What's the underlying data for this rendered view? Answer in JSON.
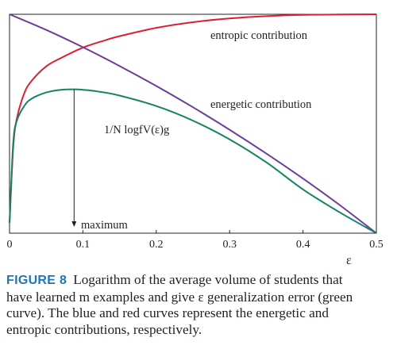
{
  "chart_data": {
    "type": "line",
    "xlabel": "ε",
    "ylabel": "",
    "xlim": [
      0,
      0.5
    ],
    "xticks": [
      "0",
      "0.1",
      "0.2",
      "0.3",
      "0.4",
      "0.5"
    ],
    "grid": false,
    "series": [
      {
        "name": "entropic contribution",
        "color": "#d92231",
        "x": [
          0,
          0.005,
          0.01,
          0.02,
          0.03,
          0.05,
          0.07,
          0.1,
          0.13,
          0.15,
          0.2,
          0.25,
          0.3,
          0.35,
          0.4,
          0.45,
          0.5
        ],
        "y": [
          0,
          0.36,
          0.5,
          0.62,
          0.68,
          0.75,
          0.79,
          0.84,
          0.875,
          0.895,
          0.935,
          0.962,
          0.98,
          0.991,
          0.997,
          0.999,
          1.0
        ]
      },
      {
        "name": "energetic contribution",
        "color": "#6a3e9a",
        "x": [
          0,
          0.05,
          0.1,
          0.15,
          0.2,
          0.25,
          0.3,
          0.35,
          0.4,
          0.45,
          0.5
        ],
        "y": [
          1.0,
          0.925,
          0.842,
          0.752,
          0.656,
          0.554,
          0.446,
          0.332,
          0.212,
          0.085,
          -0.05
        ]
      },
      {
        "name": "1/N logfV(ε)g",
        "color": "#128466",
        "x": [
          0,
          0.005,
          0.01,
          0.02,
          0.03,
          0.05,
          0.07,
          0.09,
          0.1,
          0.12,
          0.15,
          0.2,
          0.25,
          0.3,
          0.35,
          0.4,
          0.45,
          0.5
        ],
        "y": [
          0,
          0.38,
          0.49,
          0.56,
          0.595,
          0.625,
          0.638,
          0.64,
          0.638,
          0.63,
          0.61,
          0.56,
          0.49,
          0.4,
          0.29,
          0.16,
          0.05,
          -0.05
        ]
      }
    ],
    "annotations": [
      {
        "text": "entropic contribution"
      },
      {
        "text": "energetic contribution"
      },
      {
        "text": "1/N logfV(ε)g"
      },
      {
        "text": "maximum",
        "x": 0.088
      }
    ]
  },
  "caption": {
    "label": "FIGURE 8",
    "lines": [
      "Logarithm of the average volume of students that",
      "have learned m examples and give ε generalization error (green",
      "curve). The blue and red curves represent the energetic and",
      "entropic contributions, respectively."
    ]
  }
}
